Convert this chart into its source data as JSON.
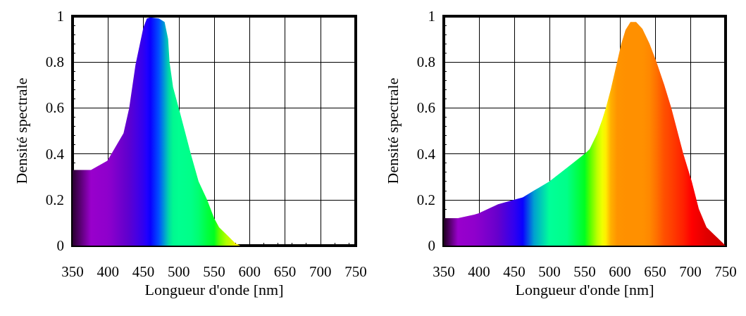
{
  "chart_data": [
    {
      "type": "area",
      "xlabel": "Longueur d'onde [nm]",
      "ylabel": "Densité spectrale",
      "xlim": [
        350,
        750
      ],
      "ylim": [
        0,
        1
      ],
      "xticks": [
        350,
        400,
        450,
        500,
        550,
        600,
        650,
        700,
        750
      ],
      "yticks": [
        0,
        0.2,
        0.4,
        0.6,
        0.8,
        1
      ],
      "grid": true,
      "x": [
        350,
        376,
        399,
        405,
        422,
        430,
        439,
        450,
        455,
        460,
        472,
        480,
        485,
        487,
        492,
        500,
        517,
        528,
        540,
        550,
        557,
        567,
        580,
        587
      ],
      "series": [
        {
          "values": [
            0.33,
            0.33,
            0.37,
            0.4,
            0.49,
            0.6,
            0.79,
            0.95,
            0.99,
            0.995,
            0.99,
            0.975,
            0.9,
            0.8,
            0.69,
            0.6,
            0.4,
            0.28,
            0.2,
            0.12,
            0.08,
            0.05,
            0.01,
            0
          ],
          "colors": [
            "#2a0030",
            "#9900cc",
            "#8f00cc",
            "#8800cc",
            "#6a00cc",
            "#5c00d0",
            "#4a00e0",
            "#3000f0",
            "#2000ff",
            "#0a00ff",
            "#0050ff",
            "#00a0d0",
            "#00d0b0",
            "#00e0a0",
            "#00f890",
            "#00ff90",
            "#00ff88",
            "#00ff70",
            "#00ff40",
            "#00ff20",
            "#60ff00",
            "#b0ff00",
            "#f0f000",
            "#ffff00"
          ]
        }
      ]
    },
    {
      "type": "area",
      "xlabel": "Longueur d'onde [nm]",
      "ylabel": "Densité spectrale",
      "xlim": [
        350,
        750
      ],
      "ylim": [
        0,
        1
      ],
      "xticks": [
        350,
        400,
        450,
        500,
        550,
        600,
        650,
        700,
        750
      ],
      "yticks": [
        0,
        0.2,
        0.4,
        0.6,
        0.8,
        1
      ],
      "grid": true,
      "x": [
        350,
        370,
        393,
        399,
        420,
        427,
        450,
        462,
        478,
        500,
        525,
        550,
        557,
        568,
        575,
        580,
        587,
        596,
        602,
        608,
        615,
        623,
        632,
        642,
        652,
        663,
        673,
        690,
        702,
        712,
        723,
        750
      ],
      "series": [
        {
          "values": [
            0.12,
            0.12,
            0.135,
            0.14,
            0.17,
            0.18,
            0.2,
            0.21,
            0.24,
            0.28,
            0.34,
            0.4,
            0.42,
            0.49,
            0.55,
            0.6,
            0.68,
            0.8,
            0.88,
            0.94,
            0.975,
            0.975,
            0.945,
            0.88,
            0.8,
            0.7,
            0.6,
            0.4,
            0.28,
            0.16,
            0.08,
            0
          ],
          "colors": [
            "#200020",
            "#9900cc",
            "#9000cc",
            "#8a00cc",
            "#7000cc",
            "#6500cc",
            "#3000f0",
            "#0a00ff",
            "#00a0d0",
            "#00ff99",
            "#00ff88",
            "#00ff20",
            "#50ff00",
            "#c0ff00",
            "#f0ff00",
            "#ffee00",
            "#ffb000",
            "#ff9400",
            "#ff9200",
            "#ff9000",
            "#ff9000",
            "#ff9000",
            "#ff9000",
            "#ff8800",
            "#ff7000",
            "#ff5000",
            "#ff4000",
            "#ff2000",
            "#ff0000",
            "#f00000",
            "#e00000",
            "#cc0000"
          ]
        }
      ]
    }
  ]
}
